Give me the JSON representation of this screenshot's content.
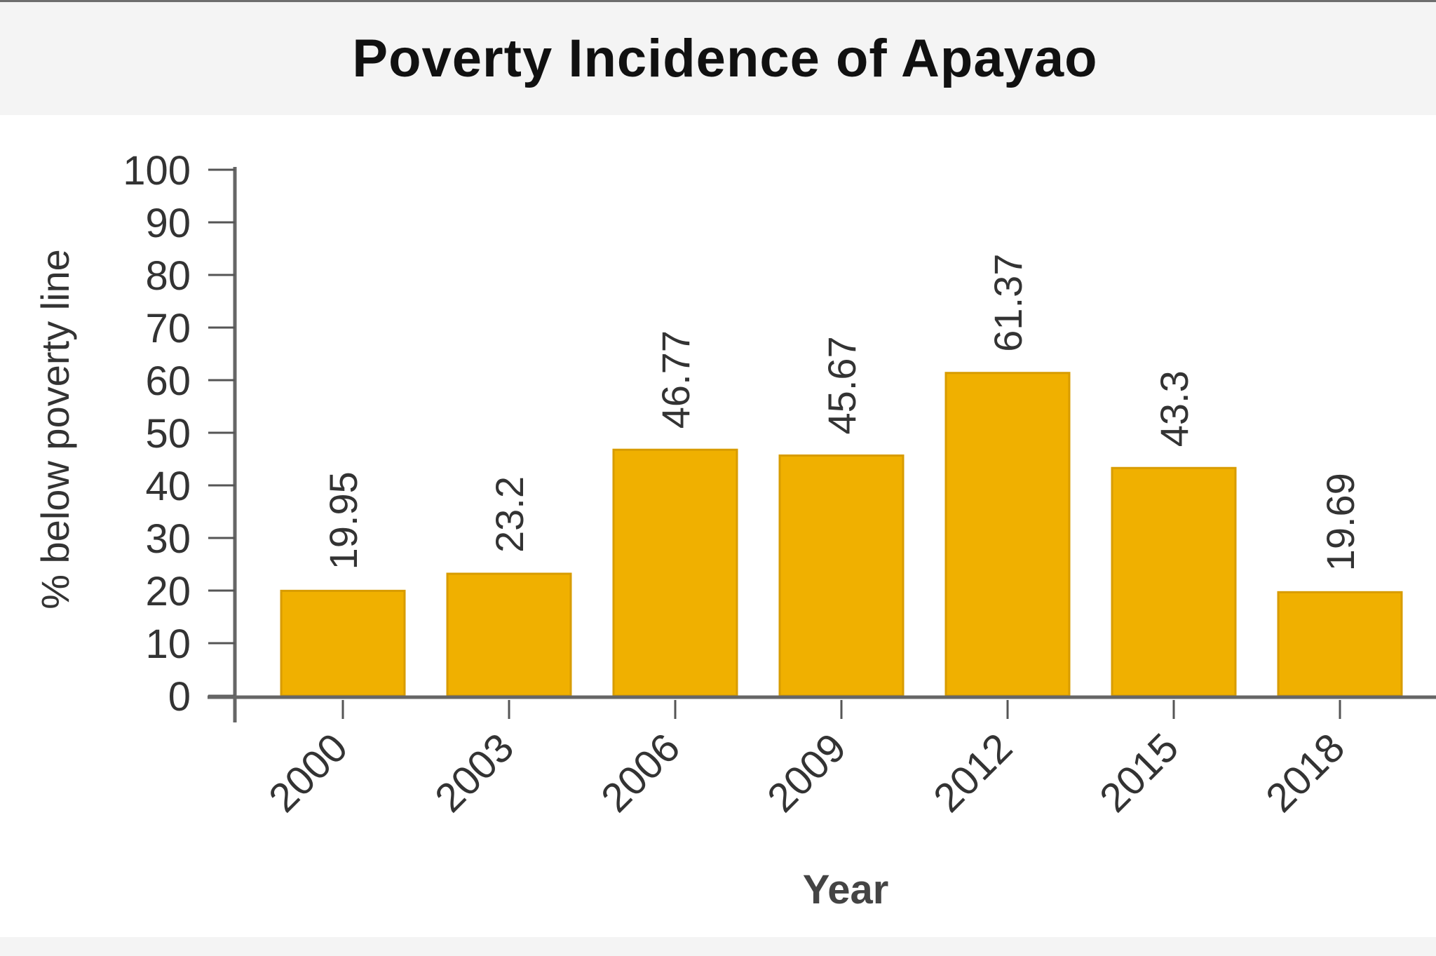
{
  "chart_data": {
    "type": "bar",
    "title": "Poverty Incidence of Apayao",
    "xlabel": "Year",
    "ylabel": "% below poverty line",
    "categories": [
      "2000",
      "2003",
      "2006",
      "2009",
      "2012",
      "2015",
      "2018"
    ],
    "values": [
      19.95,
      23.2,
      46.77,
      45.67,
      61.37,
      43.3,
      19.69
    ],
    "value_labels": [
      "19.95",
      "23.2",
      "46.77",
      "45.67",
      "61.37",
      "43.3",
      "19.69"
    ],
    "ylim": [
      0,
      100
    ],
    "yticks": [
      "0",
      "10",
      "20",
      "30",
      "40",
      "50",
      "60",
      "70",
      "80",
      "90",
      "100"
    ],
    "grid": false,
    "bar_color": "#f0b000",
    "bar_edge_color": "#d89c00"
  }
}
